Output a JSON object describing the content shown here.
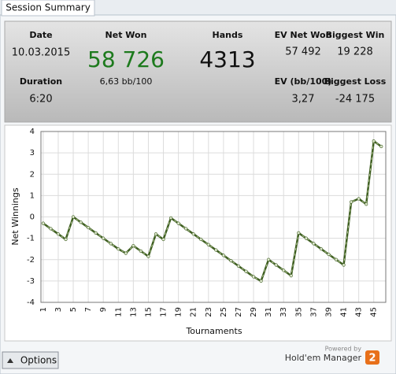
{
  "tab": "Session Summary",
  "summary": {
    "date": {
      "label": "Date",
      "value": "10.03.2015"
    },
    "duration": {
      "label": "Duration",
      "value": "6:20"
    },
    "net_won": {
      "label": "Net Won",
      "value": "58 726",
      "sub": "6,63 bb/100"
    },
    "hands": {
      "label": "Hands",
      "value": "4313"
    },
    "ev_net_won": {
      "label": "EV Net Won",
      "value": "57 492"
    },
    "biggest_win": {
      "label": "Biggest Win",
      "value": "19 228"
    },
    "ev_bb": {
      "label": "EV (bb/100)",
      "value": "3,27"
    },
    "biggest_loss": {
      "label": "Biggest Loss",
      "value": "-24 175"
    }
  },
  "chart_data": {
    "type": "line",
    "x_label": "Tournaments",
    "y_label": "Net Winnings",
    "x": [
      1,
      2,
      3,
      4,
      5,
      6,
      7,
      8,
      9,
      10,
      11,
      12,
      13,
      14,
      15,
      16,
      17,
      18,
      19,
      20,
      21,
      22,
      23,
      24,
      25,
      26,
      27,
      28,
      29,
      30,
      31,
      32,
      33,
      34,
      35,
      36,
      37,
      38,
      39,
      40,
      41,
      42,
      43,
      44,
      45,
      46
    ],
    "values": [
      -0.3,
      -0.55,
      -0.8,
      -1.05,
      0,
      -0.25,
      -0.5,
      -0.75,
      -1,
      -1.25,
      -1.5,
      -1.7,
      -1.35,
      -1.6,
      -1.85,
      -0.8,
      -1.05,
      -0.05,
      -0.3,
      -0.55,
      -0.8,
      -1.05,
      -1.3,
      -1.55,
      -1.8,
      -2.05,
      -2.3,
      -2.55,
      -2.8,
      -3,
      -2,
      -2.25,
      -2.5,
      -2.75,
      -0.75,
      -1,
      -1.25,
      -1.5,
      -1.75,
      -2,
      -2.25,
      0.7,
      0.85,
      0.6,
      3.55,
      3.3
    ],
    "color": "#3f5f22",
    "xlim": [
      0.7,
      46.6
    ],
    "xticks": [
      1,
      3,
      5,
      7,
      9,
      11,
      13,
      15,
      17,
      19,
      21,
      23,
      25,
      27,
      29,
      31,
      33,
      35,
      37,
      39,
      41,
      43,
      45
    ],
    "ylim": [
      -4,
      4
    ],
    "yticks": [
      -4,
      -3,
      -2,
      -1,
      0,
      1,
      2,
      3,
      4
    ],
    "grid": true
  },
  "footer": {
    "button": "Options",
    "powered_by": "Powered by",
    "brand": "Hold'em Manager",
    "logo": "2"
  }
}
